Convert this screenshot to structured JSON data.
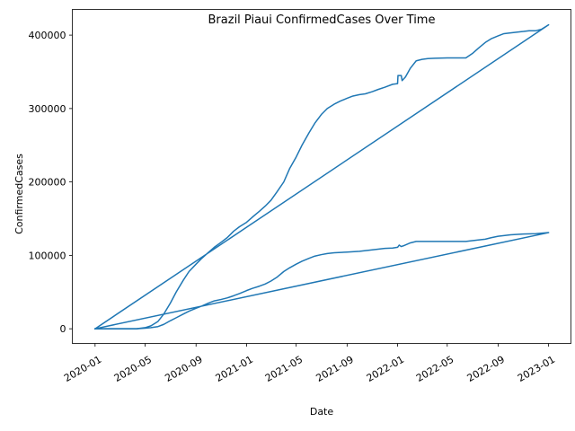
{
  "chart_data": {
    "type": "line",
    "title": "Brazil Piaui ConfirmedCases Over Time",
    "xlabel": "Date",
    "ylabel": "ConfirmedCases",
    "x_tick_labels": [
      "2020-01",
      "2020-05",
      "2020-09",
      "2021-01",
      "2021-05",
      "2021-09",
      "2022-01",
      "2022-05",
      "2022-09",
      "2023-01"
    ],
    "x_tick_dates": [
      "2020-01-01",
      "2020-05-01",
      "2020-09-01",
      "2021-01-01",
      "2021-05-01",
      "2021-09-01",
      "2022-01-01",
      "2022-05-01",
      "2022-09-01",
      "2023-01-01"
    ],
    "y_tick_values": [
      0,
      100000,
      200000,
      300000,
      400000
    ],
    "y_tick_labels": [
      "0",
      "100000",
      "200000",
      "300000",
      "400000"
    ],
    "ylim": [
      -20000,
      435000
    ],
    "xlim": [
      "2019-11-07",
      "2023-02-24"
    ],
    "grid": false,
    "series": [
      {
        "color": "#1f77b4",
        "x": [
          "2020-01-01",
          "2020-03-01",
          "2020-04-10",
          "2020-05-01",
          "2020-05-15",
          "2020-06-01",
          "2020-06-15",
          "2020-07-01",
          "2020-07-15",
          "2020-08-01",
          "2020-08-15",
          "2020-09-01",
          "2020-09-15",
          "2020-10-01",
          "2020-10-15",
          "2020-11-01",
          "2020-11-15",
          "2020-12-01",
          "2020-12-15",
          "2021-01-01",
          "2021-01-15",
          "2021-02-01",
          "2021-02-15",
          "2021-03-01",
          "2021-03-15",
          "2021-04-01",
          "2021-04-15",
          "2021-05-01",
          "2021-05-15",
          "2021-06-01",
          "2021-06-15",
          "2021-07-01",
          "2021-07-15",
          "2021-08-01",
          "2021-08-15",
          "2021-09-01",
          "2021-09-15",
          "2021-10-01",
          "2021-10-15",
          "2021-11-01",
          "2021-11-15",
          "2021-12-01",
          "2021-12-20",
          "2022-01-01",
          "2022-01-02",
          "2022-01-10",
          "2022-01-12",
          "2022-01-20",
          "2022-02-01",
          "2022-02-15",
          "2022-03-01",
          "2022-03-15",
          "2022-04-01",
          "2022-05-01",
          "2022-06-01",
          "2022-06-15",
          "2022-07-01",
          "2022-07-15",
          "2022-08-01",
          "2022-08-15",
          "2022-09-01",
          "2022-09-15",
          "2022-10-01",
          "2022-10-15",
          "2022-11-01",
          "2022-11-15",
          "2022-12-01",
          "2022-12-15",
          "2023-01-01",
          "2020-01-01"
        ],
        "y": [
          0,
          0,
          100,
          1500,
          4000,
          10000,
          20000,
          35000,
          50000,
          66000,
          78000,
          88000,
          96000,
          104000,
          111000,
          118000,
          124000,
          133000,
          139000,
          145000,
          152000,
          160000,
          167000,
          175000,
          186000,
          200000,
          218000,
          234000,
          250000,
          267000,
          280000,
          292000,
          300000,
          306000,
          310000,
          314000,
          317000,
          319000,
          320000,
          323000,
          326000,
          329000,
          333000,
          334000,
          345000,
          345000,
          338000,
          343000,
          355000,
          365000,
          367000,
          368000,
          368500,
          369000,
          369000,
          369000,
          375000,
          382000,
          390000,
          395000,
          399000,
          402000,
          403000,
          404000,
          405000,
          406000,
          406000,
          408000,
          414000,
          0
        ]
      },
      {
        "color": "#1f77b4",
        "x": [
          "2020-01-01",
          "2020-03-01",
          "2020-04-10",
          "2020-05-01",
          "2020-05-15",
          "2020-06-01",
          "2020-06-15",
          "2020-07-01",
          "2020-07-15",
          "2020-08-01",
          "2020-08-15",
          "2020-09-01",
          "2020-09-15",
          "2020-10-01",
          "2020-10-15",
          "2020-11-01",
          "2020-11-15",
          "2020-12-01",
          "2020-12-15",
          "2021-01-01",
          "2021-01-15",
          "2021-02-01",
          "2021-02-15",
          "2021-03-01",
          "2021-03-15",
          "2021-04-01",
          "2021-04-15",
          "2021-05-01",
          "2021-05-15",
          "2021-06-01",
          "2021-06-15",
          "2021-07-01",
          "2021-07-15",
          "2021-08-01",
          "2021-09-01",
          "2021-10-01",
          "2021-11-01",
          "2021-12-01",
          "2021-12-20",
          "2022-01-01",
          "2022-01-05",
          "2022-01-10",
          "2022-01-15",
          "2022-02-01",
          "2022-02-15",
          "2022-03-01",
          "2022-04-01",
          "2022-05-01",
          "2022-06-01",
          "2022-06-15",
          "2022-07-01",
          "2022-07-15",
          "2022-08-01",
          "2022-08-15",
          "2022-09-01",
          "2022-10-01",
          "2022-11-01",
          "2022-12-01",
          "2023-01-01",
          "2020-01-01"
        ],
        "y": [
          0,
          0,
          100,
          800,
          1500,
          3000,
          6000,
          11000,
          15000,
          20000,
          24000,
          28000,
          31000,
          35000,
          38000,
          40000,
          42000,
          45000,
          48000,
          52000,
          55000,
          58000,
          61000,
          65000,
          70000,
          78000,
          83000,
          88000,
          92000,
          96000,
          99000,
          101000,
          102500,
          103500,
          104500,
          105500,
          107500,
          109500,
          110000,
          111000,
          114000,
          112000,
          113000,
          117000,
          119000,
          119000,
          119000,
          119000,
          119000,
          119000,
          120000,
          121000,
          122000,
          124000,
          126000,
          128000,
          129000,
          129500,
          131000,
          0
        ]
      }
    ]
  }
}
